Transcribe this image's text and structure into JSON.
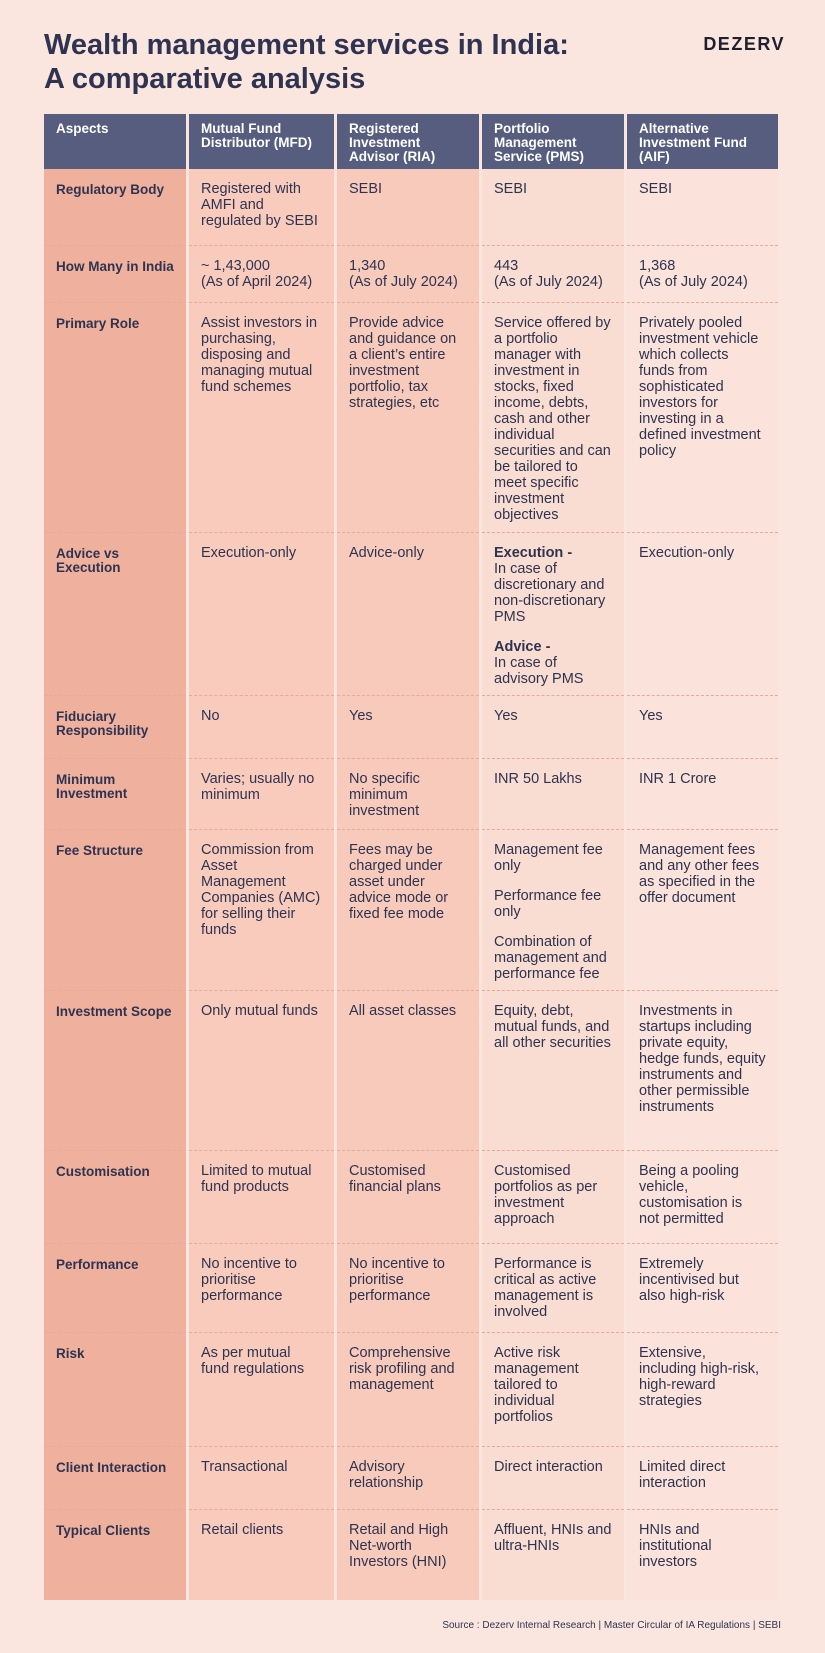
{
  "header": {
    "title": [
      "Wealth management services in India:",
      "A comparative analysis"
    ],
    "brand": "DEZERV"
  },
  "table": {
    "headers": [
      "Aspects",
      "Mutual Fund Distributor (MFD)",
      "Registered Investment Advisor (RIA)",
      "Portfolio Management Service (PMS)",
      "Alternative Investment Fund (AIF)"
    ],
    "rows": [
      [
        "Regulatory Body",
        "Registered with AMFI and regulated by SEBI",
        "SEBI",
        "SEBI",
        "SEBI"
      ],
      [
        "How Many in India",
        [
          "~ 1,43,000",
          "(As of April 2024)"
        ],
        [
          "1,340",
          "(As of July 2024)"
        ],
        [
          "443",
          "(As of July 2024)"
        ],
        [
          "1,368",
          "(As of July 2024)"
        ]
      ],
      [
        "Primary Role",
        "Assist investors in purchasing, disposing and managing mutual fund schemes",
        "Provide advice and guidance on a client’s entire investment portfolio, tax strategies, etc",
        "Service offered by a portfolio manager with investment in stocks, fixed income, debts, cash and other individual securities and can be tailored to meet specific investment objectives",
        "Privately pooled investment vehicle which collects funds from sophisticated investors for investing in a defined investment policy"
      ],
      [
        "Advice vs Execution",
        "Execution-only",
        "Advice-only",
        [
          {
            "label": "Execution -",
            "text": "In case of discretionary and non-discretionary PMS"
          },
          {
            "label": "Advice -",
            "text": "In case of advisory PMS"
          }
        ],
        "Execution-only"
      ],
      [
        "Fiduciary Responsibility",
        "No",
        "Yes",
        "Yes",
        "Yes"
      ],
      [
        "Minimum Investment",
        "Varies; usually no minimum",
        "No specific minimum investment",
        "INR 50 Lakhs",
        "INR 1 Crore"
      ],
      [
        "Fee Structure",
        "Commission from Asset Management Companies (AMC) for selling their funds",
        "Fees may be charged under asset under advice mode or fixed fee mode",
        [
          {
            "text": "Management fee only"
          },
          {
            "text": "Performance fee only"
          },
          {
            "text": "Combination of management and performance fee"
          }
        ],
        "Management fees and any other fees as specified in the offer document"
      ],
      [
        "Investment Scope",
        "Only mutual funds",
        "All asset classes",
        "Equity, debt, mutual funds, and all other securities",
        "Investments in startups including private equity, hedge funds, equity instruments and other permissible instruments"
      ],
      [
        "Customisation",
        "Limited to mutual fund products",
        "Customised financial plans",
        "Customised portfolios as per investment approach",
        "Being a pooling vehicle, customisation is not permitted"
      ],
      [
        "Performance",
        "No incentive to prioritise performance",
        "No incentive to prioritise performance",
        "Performance is critical as active management is involved",
        "Extremely incentivised but also high-risk"
      ],
      [
        "Risk",
        "As per mutual fund regulations",
        "Comprehensive risk profiling and management",
        "Active risk management tailored to individual portfolios",
        "Extensive, including high-risk, high-reward strategies"
      ],
      [
        "Client Interaction",
        "Transactional",
        "Advisory relationship",
        "Direct interaction",
        "Limited direct interaction"
      ],
      [
        "Typical Clients",
        "Retail clients",
        "Retail and High Net-worth Investors (HNI)",
        "Affluent, HNIs and ultra-HNIs",
        "HNIs and institutional investors"
      ]
    ]
  },
  "footer": {
    "source": "Source : Dezerv Internal Research | Master Circular of IA Regulations | SEBI"
  }
}
